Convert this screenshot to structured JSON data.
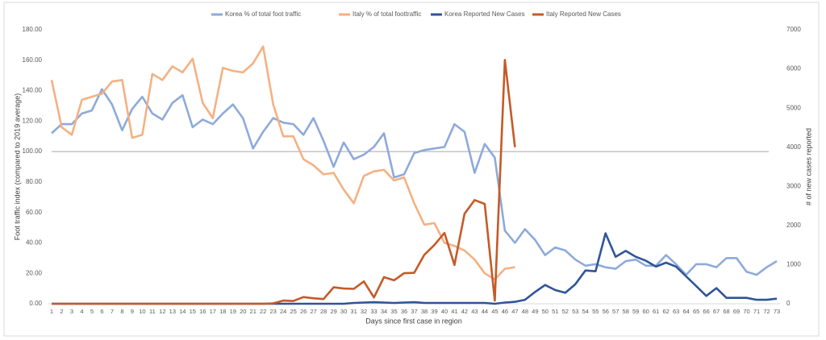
{
  "chart_data": {
    "type": "line",
    "xlabel": "Days since first case in region",
    "ylabel": "Foot traffic index (compared to 2019 average)",
    "y2label": "# of new cases reported",
    "categories": [
      1,
      2,
      3,
      4,
      5,
      6,
      7,
      8,
      9,
      10,
      11,
      12,
      13,
      14,
      15,
      16,
      17,
      18,
      19,
      20,
      21,
      22,
      23,
      24,
      25,
      26,
      27,
      28,
      29,
      30,
      31,
      32,
      33,
      34,
      35,
      36,
      37,
      38,
      39,
      40,
      41,
      42,
      43,
      44,
      45,
      46,
      47,
      48,
      49,
      50,
      51,
      52,
      53,
      54,
      55,
      56,
      57,
      58,
      59,
      60,
      61,
      62,
      63,
      64,
      65,
      66,
      67,
      68,
      69,
      70,
      71,
      72,
      73
    ],
    "ylim": [
      0,
      180
    ],
    "yticks": [
      {
        "value": 0,
        "label": "0.00"
      },
      {
        "value": 20,
        "label": "20.00"
      },
      {
        "value": 40,
        "label": "40.00"
      },
      {
        "value": 60,
        "label": "60.00"
      },
      {
        "value": 80,
        "label": "80.00"
      },
      {
        "value": 100,
        "label": "100.00"
      },
      {
        "value": 120,
        "label": "120.00"
      },
      {
        "value": 140,
        "label": "140.00"
      },
      {
        "value": 160,
        "label": "160.00"
      },
      {
        "value": 180,
        "label": "180.00"
      }
    ],
    "y2lim": [
      0,
      7000
    ],
    "y2ticks": [
      0,
      1000,
      2000,
      3000,
      4000,
      5000,
      6000,
      7000
    ],
    "reference_line": 100,
    "series": [
      {
        "name": "Korea % of total foot traffic",
        "color": "#8eaadb",
        "values": [
          112,
          118,
          118,
          125,
          127,
          141,
          131,
          114,
          128,
          136,
          125,
          121,
          132,
          137,
          116,
          121,
          118,
          125,
          131,
          122,
          102,
          113,
          122,
          119,
          118,
          111,
          122,
          107,
          90,
          106,
          95,
          98,
          103,
          112,
          83,
          85,
          99,
          101,
          102,
          103,
          118,
          113,
          86,
          105,
          96,
          48,
          40,
          49,
          42,
          32,
          37,
          35,
          29,
          25,
          26,
          24,
          23,
          28,
          29,
          25,
          25,
          32,
          26,
          19,
          26,
          26,
          24,
          30,
          30,
          21,
          19,
          24,
          28
        ]
      },
      {
        "name": "Italy % of total foottraffic",
        "color": "#f4b183",
        "values": [
          147,
          116,
          111,
          134,
          136,
          138,
          146,
          147,
          109,
          111,
          151,
          147,
          156,
          152,
          161,
          132,
          122,
          155,
          153,
          152,
          158,
          169,
          131,
          110,
          110,
          95,
          91,
          85,
          86,
          75,
          66,
          84,
          87,
          88,
          81,
          83,
          66,
          52,
          53,
          40,
          38,
          35,
          29,
          20,
          16,
          23,
          24,
          null,
          null,
          null,
          null,
          null,
          null,
          null,
          null,
          null,
          null,
          null,
          null,
          null,
          null,
          null,
          null,
          null,
          null,
          null,
          null,
          null,
          null,
          null,
          null,
          null,
          null
        ]
      },
      {
        "name": "Korea Reported New Cases",
        "color": "#2f5597",
        "axis": "y2",
        "values": [
          0,
          0,
          0,
          0,
          0,
          0,
          0,
          0,
          0,
          0,
          0,
          0,
          0,
          0,
          0,
          0,
          0,
          0,
          0,
          0,
          0,
          0,
          0,
          0,
          0,
          0,
          0,
          0,
          0,
          0,
          20,
          30,
          40,
          30,
          20,
          30,
          40,
          20,
          20,
          20,
          20,
          20,
          20,
          20,
          0,
          30,
          50,
          100,
          300,
          480,
          350,
          280,
          500,
          850,
          830,
          1800,
          1200,
          1350,
          1200,
          1100,
          950,
          1050,
          950,
          700,
          450,
          200,
          400,
          150,
          150,
          150,
          100,
          100,
          130
        ]
      },
      {
        "name": "Italy Reported New Cases",
        "color": "#c55a28",
        "axis": "y2",
        "values": [
          0,
          0,
          0,
          0,
          0,
          0,
          0,
          0,
          0,
          0,
          0,
          0,
          0,
          0,
          0,
          0,
          0,
          0,
          0,
          0,
          0,
          0,
          10,
          80,
          70,
          170,
          140,
          120,
          420,
          390,
          380,
          570,
          160,
          680,
          600,
          780,
          790,
          1250,
          1500,
          1810,
          990,
          2300,
          2650,
          2550,
          80,
          6230,
          4000,
          null,
          null,
          null,
          null,
          null,
          null,
          null,
          null,
          null,
          null,
          null,
          null,
          null,
          null,
          null,
          null,
          null,
          null,
          null,
          null,
          null,
          null,
          null,
          null,
          null,
          null
        ]
      }
    ]
  }
}
